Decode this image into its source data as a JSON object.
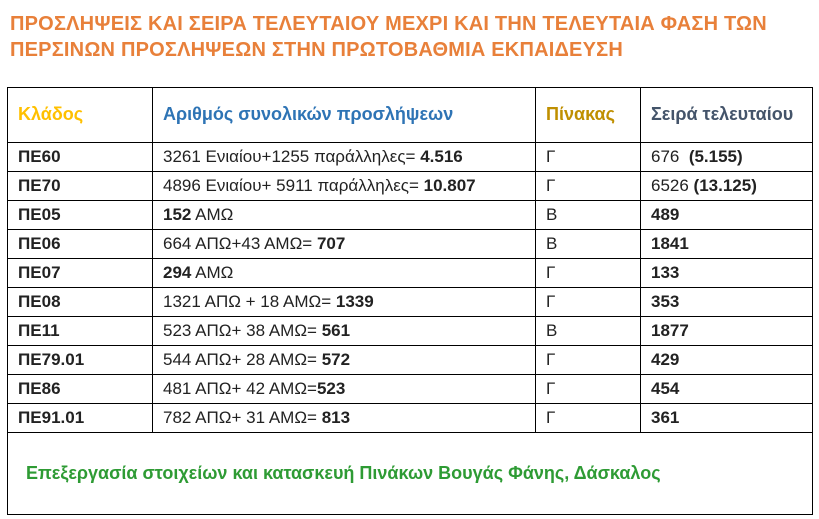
{
  "page": {
    "title": "ΠΡΟΣΛΗΨΕΙΣ ΚΑΙ ΣΕΙΡΑ ΤΕΛΕΥΤΑΙΟΥ ΜΕΧΡΙ ΚΑΙ ΤΗΝ ΤΕΛΕΥΤΑΙΑ ΦΑΣΗ ΤΩΝ ΠΕΡΣΙΝΩΝ ΠΡΟΣΛΗΨΕΩΝ ΣΤΗΝ ΠΡΩΤΟΒΑΘΜΙΑ ΕΚΠΑΙΔΕΥΣΗ"
  },
  "colors": {
    "title": "#E8803A",
    "header_klados": "#FFC000",
    "header_arithmos": "#2E74B5",
    "header_pinakas": "#BF8F00",
    "header_seira": "#44546A",
    "footer": "#2E9B34",
    "border": "#000000",
    "text": "#222222"
  },
  "table": {
    "headers": [
      {
        "label": "Κλάδος"
      },
      {
        "label": "Αριθμός συνολικών προσλήψεων"
      },
      {
        "label": "Πίνακας"
      },
      {
        "label": "Σειρά τελευταίου"
      }
    ],
    "rows": [
      {
        "klados": "ΠΕ60",
        "total": [
          {
            "t": "3261 Ενιαίου+1255 παράλληλες= "
          },
          {
            "t": "4.516",
            "b": true
          }
        ],
        "pinakas": "Γ",
        "seira": [
          {
            "t": "676  "
          },
          {
            "t": "(5.155)",
            "b": true
          }
        ]
      },
      {
        "klados": "ΠΕ70",
        "total": [
          {
            "t": "4896 Ενιαίου+ 5911 παράλληλες= "
          },
          {
            "t": "10.807",
            "b": true
          }
        ],
        "pinakas": "Γ",
        "seira": [
          {
            "t": "6526 "
          },
          {
            "t": "(13.125)",
            "b": true
          }
        ]
      },
      {
        "klados": "ΠΕ05",
        "total": [
          {
            "t": "152",
            "b": true
          },
          {
            "t": " ΑΜΩ"
          }
        ],
        "pinakas": "Β",
        "seira": [
          {
            "t": "489",
            "b": true
          }
        ]
      },
      {
        "klados": "ΠΕ06",
        "total": [
          {
            "t": "664 ΑΠΩ+43 ΑΜΩ= "
          },
          {
            "t": "707",
            "b": true
          }
        ],
        "pinakas": "Β",
        "seira": [
          {
            "t": "1841",
            "b": true
          }
        ]
      },
      {
        "klados": "ΠΕ07",
        "total": [
          {
            "t": "294",
            "b": true
          },
          {
            "t": " ΑΜΩ"
          }
        ],
        "pinakas": "Γ",
        "seira": [
          {
            "t": "133",
            "b": true
          }
        ]
      },
      {
        "klados": "ΠΕ08",
        "total": [
          {
            "t": "1321 ΑΠΩ + 18 ΑΜΩ= "
          },
          {
            "t": "1339",
            "b": true
          }
        ],
        "pinakas": "Γ",
        "seira": [
          {
            "t": "353",
            "b": true
          }
        ]
      },
      {
        "klados": "ΠΕ11",
        "total": [
          {
            "t": "523 ΑΠΩ+ 38 ΑΜΩ= "
          },
          {
            "t": "561",
            "b": true
          }
        ],
        "pinakas": "Β",
        "seira": [
          {
            "t": "1877",
            "b": true
          }
        ]
      },
      {
        "klados": "ΠΕ79.01",
        "total": [
          {
            "t": "544 ΑΠΩ+ 28 ΑΜΩ= "
          },
          {
            "t": "572",
            "b": true
          }
        ],
        "pinakas": "Γ",
        "seira": [
          {
            "t": "429",
            "b": true
          }
        ]
      },
      {
        "klados": "ΠΕ86",
        "total": [
          {
            "t": "481 ΑΠΩ+ 42 ΑΜΩ="
          },
          {
            "t": "523",
            "b": true
          }
        ],
        "pinakas": "Γ",
        "seira": [
          {
            "t": "454",
            "b": true
          }
        ]
      },
      {
        "klados": "ΠΕ91.01",
        "total": [
          {
            "t": "782 ΑΠΩ+ 31 ΑΜΩ= "
          },
          {
            "t": "813",
            "b": true
          }
        ],
        "pinakas": "Γ",
        "seira": [
          {
            "t": "361",
            "b": true
          }
        ]
      }
    ],
    "footer": "Επεξεργασία στοιχείων και κατασκευή Πινάκων Βουγάς Φάνης, Δάσκαλος"
  }
}
